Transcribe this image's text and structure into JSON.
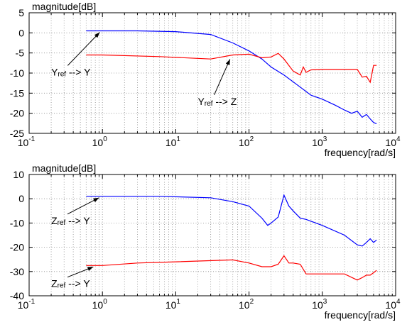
{
  "chart_data": [
    {
      "type": "line",
      "title": "",
      "xlabel": "frequency[rad/s]",
      "ylabel": "magnitude[dB]",
      "xscale": "log",
      "xlim": [
        0.1,
        10000
      ],
      "ylim": [
        -25,
        5
      ],
      "yticks": [
        5,
        0,
        -5,
        -10,
        -15,
        -20,
        -25
      ],
      "grid": true,
      "series": [
        {
          "color": "#0000ff",
          "x": [
            0.6,
            1,
            3,
            10,
            30,
            60,
            100,
            150,
            200,
            300,
            500,
            700,
            1000,
            1500,
            2000,
            2500,
            3000,
            3500,
            4000,
            4500,
            5000,
            5500
          ],
          "y": [
            0.5,
            0.5,
            0.5,
            0.3,
            -0.4,
            -2.5,
            -4.5,
            -6.5,
            -8.5,
            -10.5,
            -13.5,
            -15.5,
            -16.5,
            -18,
            -19.2,
            -20,
            -19.5,
            -21,
            -20.3,
            -21.4,
            -22.3,
            -22.6
          ]
        },
        {
          "color": "#ff0000",
          "x": [
            0.6,
            1,
            6,
            30,
            60,
            100,
            150,
            200,
            250,
            300,
            400,
            500,
            550,
            600,
            700,
            1000,
            2000,
            3000,
            3500,
            4000,
            4500,
            5000,
            5500
          ],
          "y": [
            -5.5,
            -5.5,
            -5.9,
            -6.5,
            -5.5,
            -5.3,
            -6.2,
            -6,
            -5.1,
            -6.5,
            -9.5,
            -10.5,
            -8.5,
            -9.8,
            -9.2,
            -9.1,
            -9.1,
            -9.1,
            -11,
            -10.8,
            -12.3,
            -8.1,
            -8.1
          ]
        }
      ],
      "annotations": [
        {
          "base": "Y",
          "sub": "ref",
          "rest": " --> Y",
          "x": 0.2,
          "y": -10.6,
          "arrow_to": [
            0.92,
            0.5
          ]
        },
        {
          "base": "Y",
          "sub": "ref",
          "rest": " --> Z",
          "x": 20,
          "y": -17.9,
          "arrow_to": [
            55,
            -6.2
          ]
        }
      ]
    },
    {
      "type": "line",
      "title": "",
      "xlabel": "frequency[rad/s]",
      "ylabel": "magnitude[dB]",
      "xscale": "log",
      "xlim": [
        0.1,
        10000
      ],
      "ylim": [
        -40,
        10
      ],
      "yticks": [
        10,
        0,
        -10,
        -20,
        -30,
        -40
      ],
      "grid": true,
      "series": [
        {
          "color": "#0000ff",
          "x": [
            0.6,
            1,
            6,
            30,
            60,
            100,
            150,
            180,
            200,
            250,
            300,
            350,
            400,
            500,
            600,
            1000,
            2000,
            3000,
            3500,
            4000,
            4500,
            5000,
            5500
          ],
          "y": [
            1,
            1,
            1,
            0.4,
            -1.2,
            -3,
            -8,
            -11,
            -10,
            -7.5,
            1.5,
            -3,
            -5,
            -8,
            -8.5,
            -11,
            -15,
            -19,
            -19.5,
            -18,
            -16.5,
            -18,
            -17
          ]
        },
        {
          "color": "#ff0000",
          "x": [
            0.6,
            1,
            3,
            10,
            60,
            100,
            150,
            200,
            250,
            300,
            350,
            400,
            500,
            600,
            1000,
            2000,
            3000,
            3500,
            4000,
            4500,
            5000,
            5500
          ],
          "y": [
            -27.5,
            -27.5,
            -26.5,
            -26,
            -25.2,
            -26.5,
            -28,
            -28,
            -27,
            -23.5,
            -26.5,
            -26.5,
            -27,
            -31,
            -31,
            -31,
            -33.5,
            -32.5,
            -31.5,
            -31.5,
            -30.5,
            -29.5
          ]
        }
      ],
      "annotations": [
        {
          "base": "Z",
          "sub": "ref",
          "rest": " --> Y",
          "x": 0.2,
          "y": -10.4,
          "arrow_to": [
            0.9,
            1
          ]
        },
        {
          "base": "Z",
          "sub": "ref",
          "rest": " --> Y",
          "x": 0.2,
          "y": -36.4,
          "arrow_to": [
            0.75,
            -27.5
          ]
        }
      ]
    }
  ]
}
